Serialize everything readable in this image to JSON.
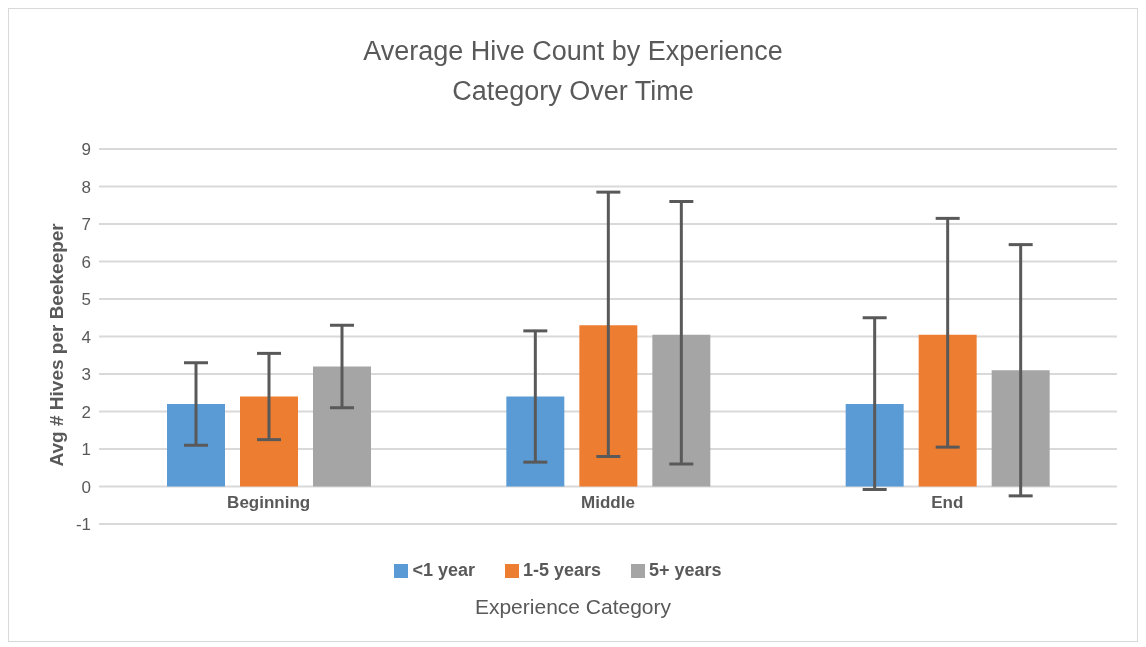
{
  "chart_data": {
    "type": "bar",
    "title": "Average Hive Count by Experience Category Over Time",
    "xlabel": "Experience Category",
    "ylabel": "Avg # Hives per Beekeeper",
    "categories": [
      "Beginning",
      "Middle",
      "End"
    ],
    "series": [
      {
        "name": "<1 year",
        "color": "#5b9bd5",
        "values": [
          2.2,
          2.4,
          2.2
        ],
        "errors": [
          [
            1.1,
            3.3
          ],
          [
            0.65,
            4.15
          ],
          [
            -0.08,
            4.5
          ]
        ]
      },
      {
        "name": "1-5 years",
        "color": "#ed7d31",
        "values": [
          2.4,
          4.3,
          4.05
        ],
        "errors": [
          [
            1.25,
            3.55
          ],
          [
            0.8,
            7.85
          ],
          [
            1.05,
            7.15
          ]
        ]
      },
      {
        "name": "5+ years",
        "color": "#a5a5a5",
        "values": [
          3.2,
          4.05,
          3.1
        ],
        "errors": [
          [
            2.1,
            4.3
          ],
          [
            0.6,
            7.6
          ],
          [
            -0.25,
            6.45
          ]
        ]
      }
    ],
    "ylim": [
      -1,
      9
    ],
    "yticks": [
      -1,
      0,
      1,
      2,
      3,
      4,
      5,
      6,
      7,
      8,
      9
    ],
    "grid": "y",
    "legend": "bottom"
  }
}
